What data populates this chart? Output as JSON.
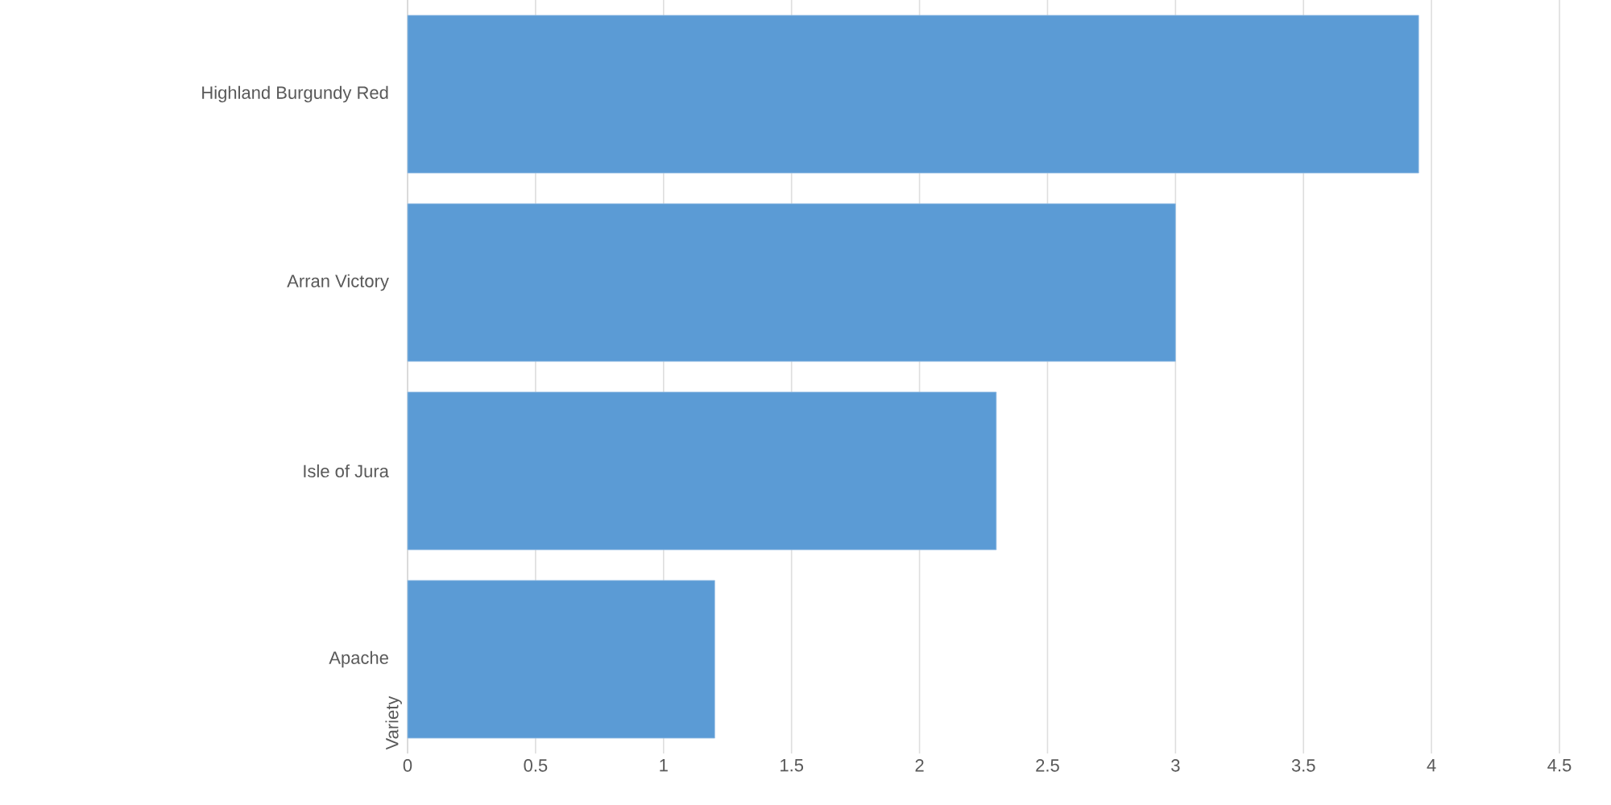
{
  "chart_data": {
    "type": "bar",
    "orientation": "horizontal",
    "ylabel": "Variety",
    "categories": [
      "Highland Burgundy Red",
      "Arran Victory",
      "Isle of Jura",
      "Apache"
    ],
    "values": [
      3.95,
      3.0,
      2.3,
      1.2
    ],
    "color": "#5b9bd5",
    "xlim": [
      0,
      4.5
    ],
    "xticks": [
      0,
      0.5,
      1,
      1.5,
      2,
      2.5,
      3,
      3.5,
      4,
      4.5
    ],
    "grid": "x"
  }
}
